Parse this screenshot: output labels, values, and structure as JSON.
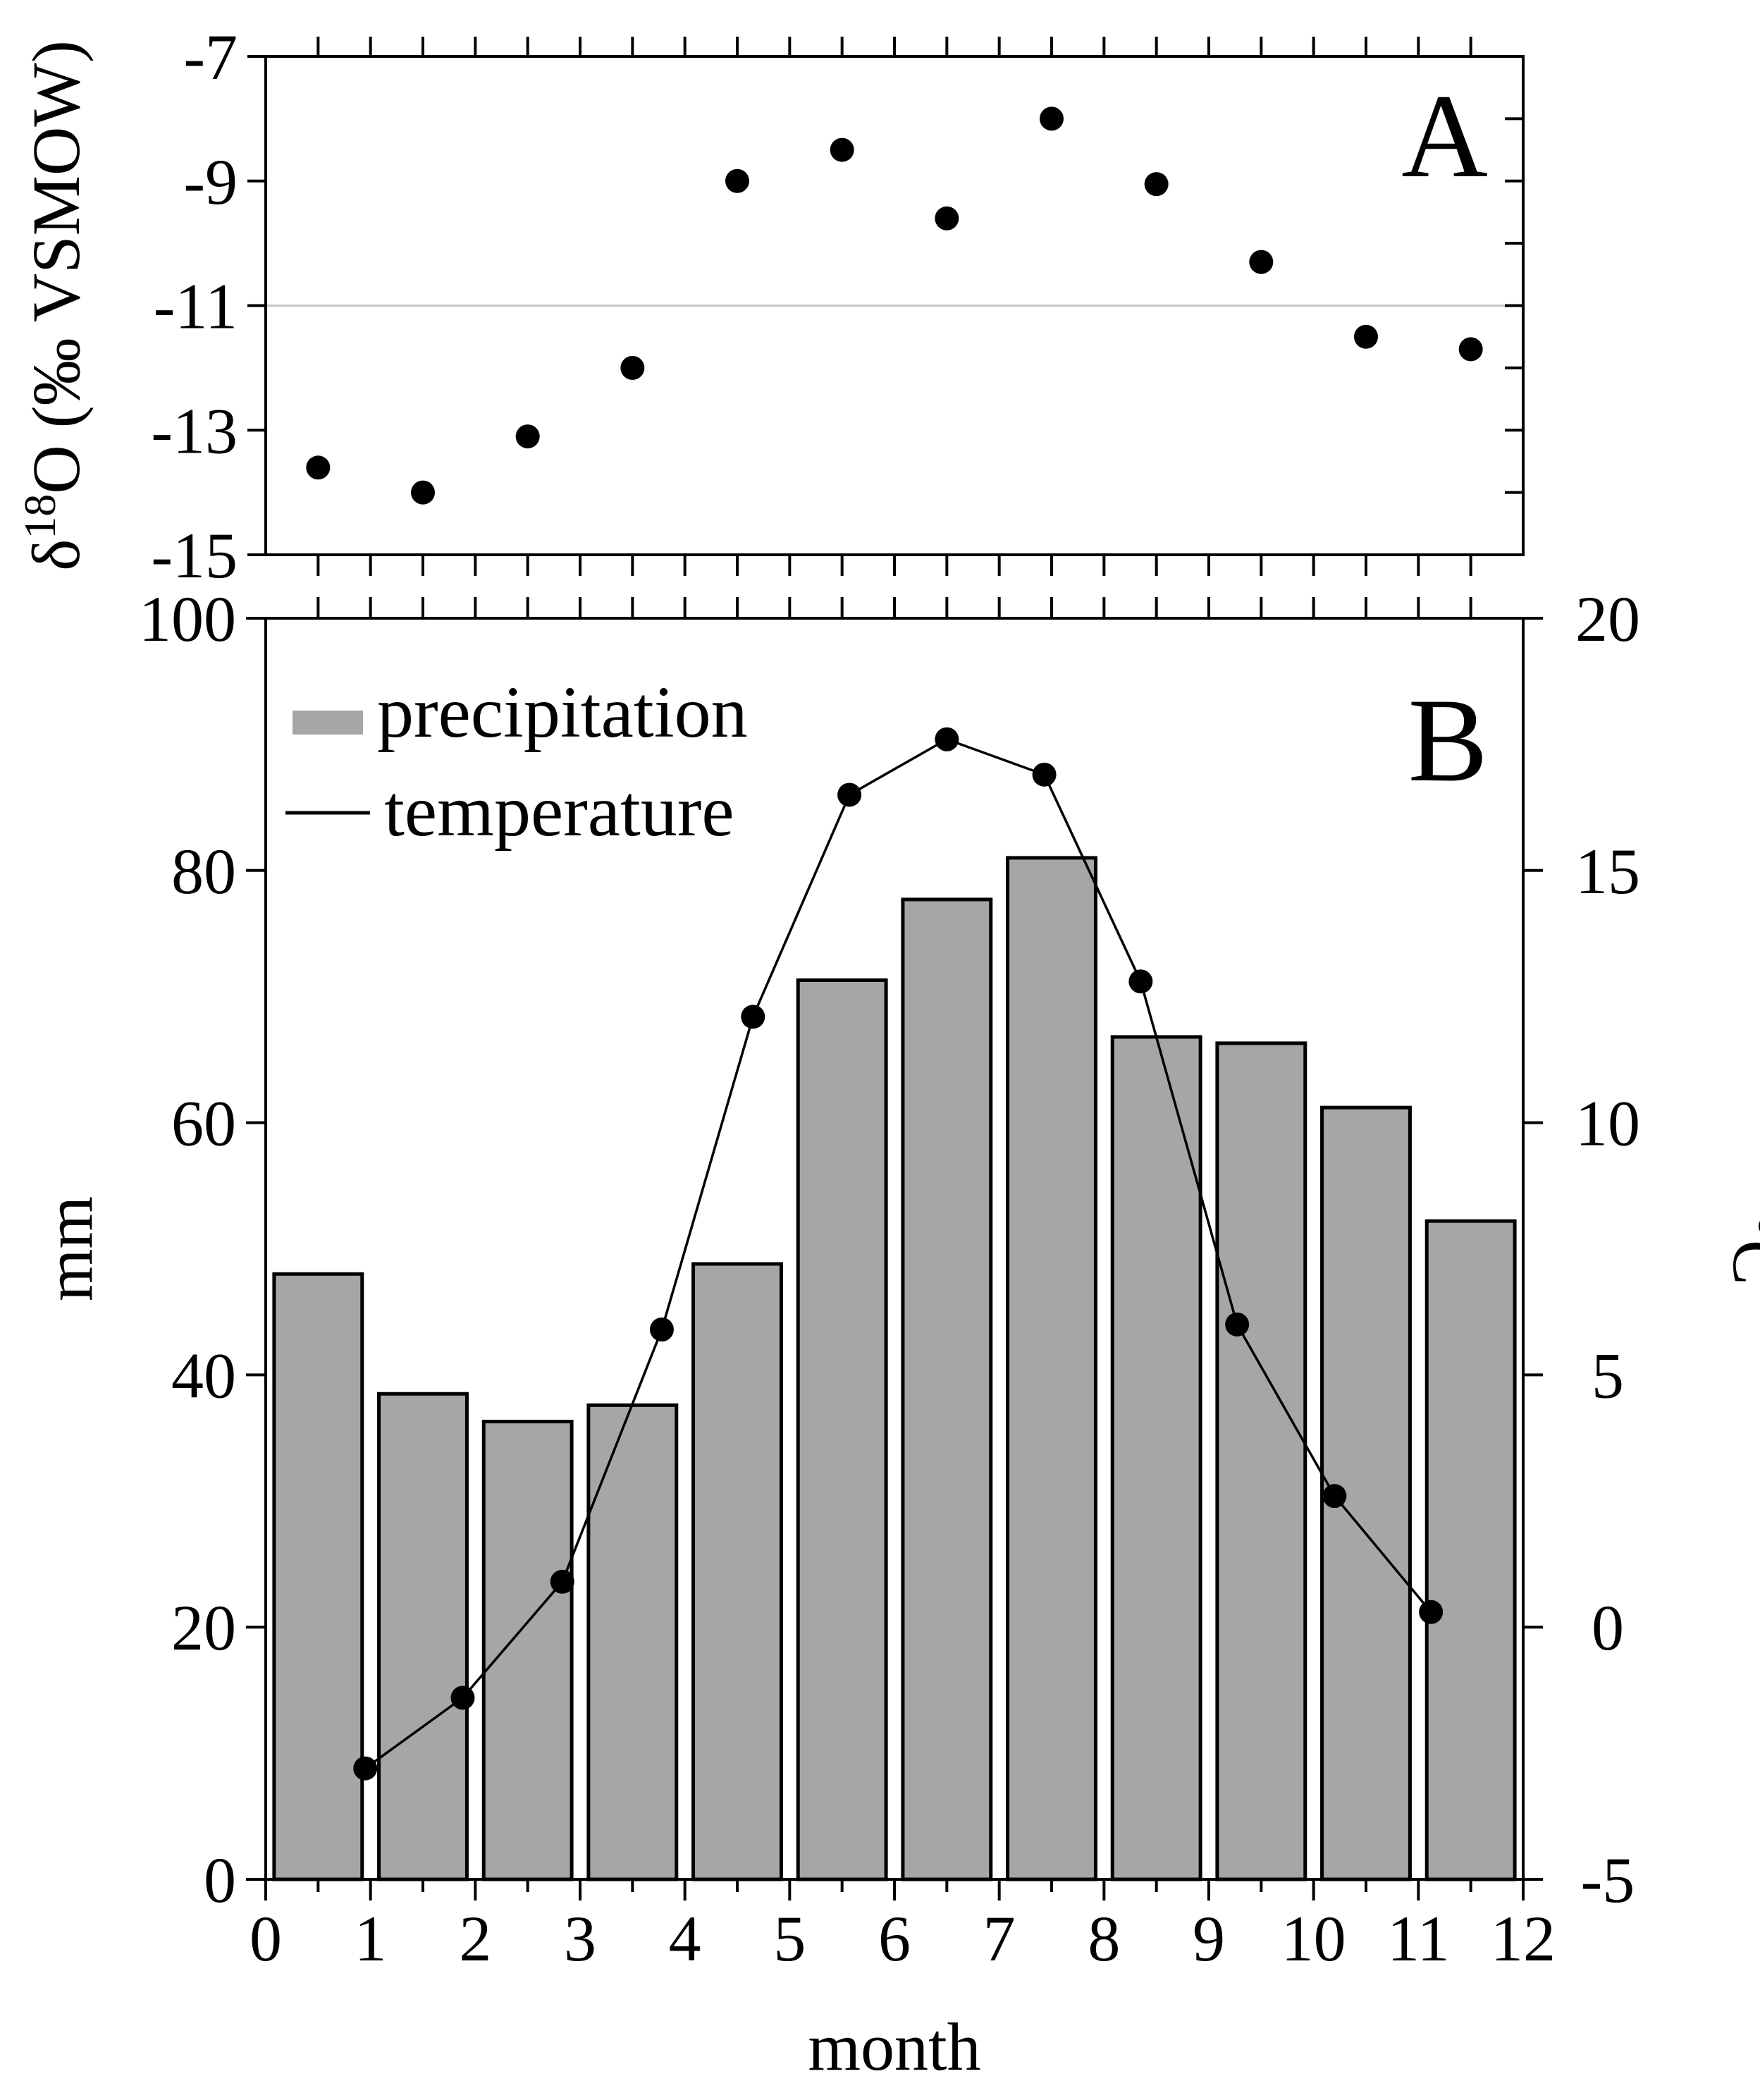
{
  "chart_data": [
    {
      "panel": "A",
      "type": "scatter",
      "ylabel": "δ18O (‰ VSMOW)",
      "ylabel_parts": {
        "delta": "δ",
        "sup": "18",
        "rest": "O (‰ VSMOW)"
      },
      "ylim": [
        -15,
        -7
      ],
      "yticks": [
        -15,
        -13,
        -11,
        -9,
        -7
      ],
      "ytick_labels": [
        "-15",
        "-13",
        "-11",
        "-9",
        "-7"
      ],
      "xlim": [
        0,
        12
      ],
      "reference_line": -11,
      "x": [
        0.5,
        1.5,
        2.5,
        3.5,
        4.5,
        5.5,
        6.5,
        7.5,
        8.5,
        9.5,
        10.5,
        11.5
      ],
      "values": [
        -13.6,
        -14.0,
        -13.1,
        -12.0,
        -9.0,
        -8.5,
        -9.6,
        -8.0,
        -9.05,
        -10.3,
        -11.5,
        -11.7
      ]
    },
    {
      "panel": "B",
      "type": "bar",
      "xlabel": "month",
      "ylabel": "mm",
      "y2label": "°C",
      "xlim": [
        0,
        12
      ],
      "xticks": [
        0,
        1,
        2,
        3,
        4,
        5,
        6,
        7,
        8,
        9,
        10,
        11,
        12
      ],
      "xtick_labels": [
        "0",
        "1",
        "2",
        "3",
        "4",
        "5",
        "6",
        "7",
        "8",
        "9",
        "10",
        "11",
        "12"
      ],
      "ylim": [
        0,
        100
      ],
      "yticks": [
        0,
        20,
        40,
        60,
        80,
        100
      ],
      "ytick_labels": [
        "0",
        "20",
        "40",
        "60",
        "80",
        "100"
      ],
      "y2lim": [
        -5,
        20
      ],
      "y2ticks": [
        -5,
        0,
        5,
        10,
        15,
        20
      ],
      "y2tick_labels": [
        "-5",
        "0",
        "5",
        "10",
        "15",
        "20"
      ],
      "legend": [
        {
          "label": "precipitation",
          "kind": "bar"
        },
        {
          "label": "temperature",
          "kind": "line"
        }
      ],
      "legend_position": "top-left",
      "series": [
        {
          "name": "precipitation",
          "type": "bar",
          "axis": "left",
          "x": [
            0.5,
            1.5,
            2.5,
            3.5,
            4.5,
            5.5,
            6.5,
            7.5,
            8.5,
            9.5,
            10.5,
            11.5
          ],
          "values": [
            48,
            38.5,
            36.3,
            37.6,
            48.8,
            71.3,
            77.7,
            81,
            66.8,
            66.3,
            61.2,
            52.2
          ]
        },
        {
          "name": "temperature",
          "type": "line",
          "axis": "right",
          "x": [
            0.95,
            1.88,
            2.83,
            3.78,
            4.65,
            5.57,
            6.5,
            7.43,
            8.35,
            9.27,
            10.2,
            11.12
          ],
          "values": [
            -2.8,
            -1.4,
            0.9,
            5.9,
            12.1,
            16.5,
            17.6,
            16.9,
            12.8,
            6.0,
            2.6,
            0.3
          ]
        }
      ]
    }
  ]
}
